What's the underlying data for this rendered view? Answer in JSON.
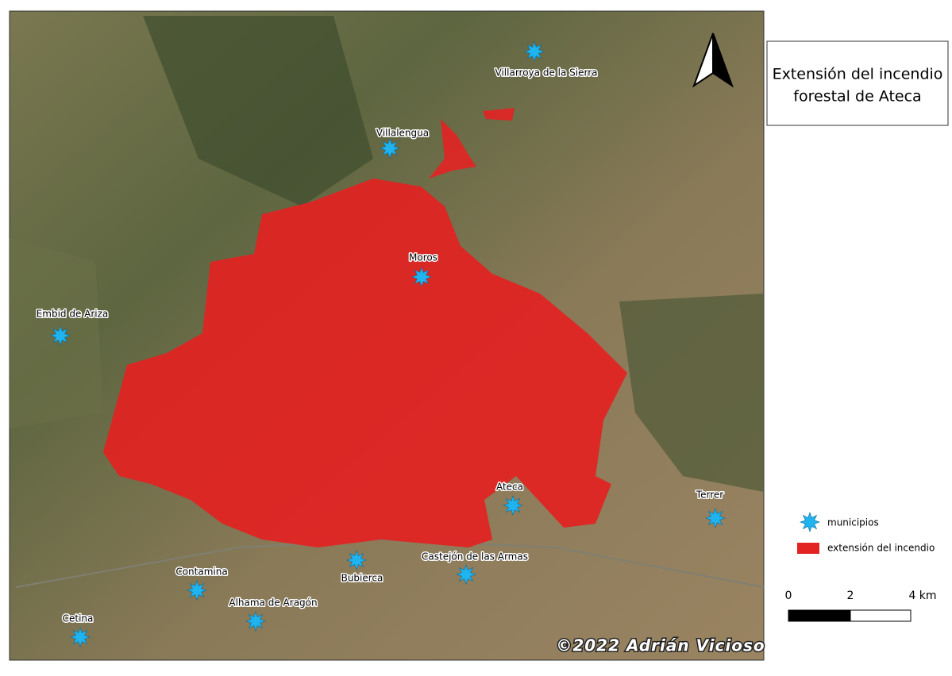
{
  "title": {
    "line1": "Extensión del incendio",
    "line2": "forestal de Ateca"
  },
  "towns": [
    "Villarroya de la Sierra",
    "Villalengua",
    "Moros",
    "Embid de Ariza",
    "Ateca",
    "Terrer",
    "Bubierca",
    "Castejón de las Armas",
    "Contamina",
    "Alhama de Aragón",
    "Cetina"
  ],
  "legend": {
    "municipios": "municipios",
    "fire": "extensión del incendio"
  },
  "scale_bar": {
    "labels": [
      "0",
      "2",
      "4 km"
    ]
  },
  "credit": "©2022 Adrián Vicioso"
}
